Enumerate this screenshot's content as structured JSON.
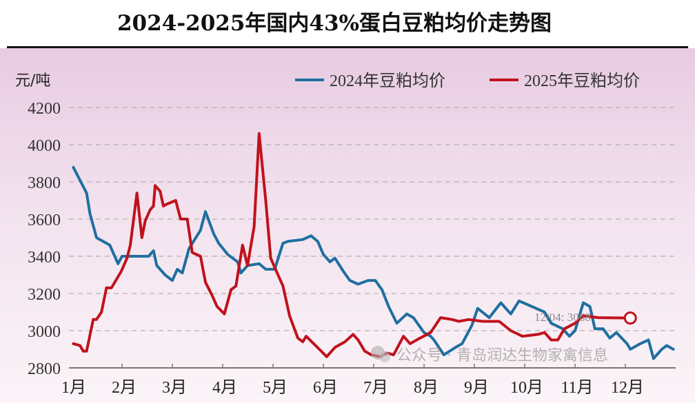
{
  "title": "2024-2025年国内43%蛋白豆粕均价走势图",
  "watermark": "公众号 · 青岛润达生物家禽信息",
  "chart_data": {
    "type": "line",
    "title": "2024-2025年国内43%蛋白豆粕均价走势图",
    "ylabel": "元/吨",
    "xlabel": "",
    "ylim": [
      2800,
      4200
    ],
    "yticks": [
      "2800",
      "3000",
      "3200",
      "3400",
      "3600",
      "3800",
      "4000",
      "4200"
    ],
    "xtick_labels": [
      "1月",
      "2月",
      "3月",
      "4月",
      "5月",
      "6月",
      "7月",
      "8月",
      "9月",
      "10月",
      "11月",
      "12月"
    ],
    "grid": "horizontal dashed",
    "legend_position": "top-right",
    "annotation": {
      "text": "12/04: 3068",
      "series": "2025年豆粕均价",
      "x": "12-04",
      "y": 3068
    },
    "series": [
      {
        "name": "2024年豆粕均价",
        "color": "#1f6f9f",
        "points": [
          [
            "01-02",
            3878
          ],
          [
            "01-10",
            3740
          ],
          [
            "01-12",
            3630
          ],
          [
            "01-16",
            3500
          ],
          [
            "01-18",
            3490
          ],
          [
            "01-24",
            3460
          ],
          [
            "01-29",
            3360
          ],
          [
            "02-01",
            3400
          ],
          [
            "02-06",
            3400
          ],
          [
            "02-17",
            3400
          ],
          [
            "02-20",
            3430
          ],
          [
            "02-22",
            3350
          ],
          [
            "02-27",
            3300
          ],
          [
            "03-01",
            3270
          ],
          [
            "03-04",
            3330
          ],
          [
            "03-07",
            3310
          ],
          [
            "03-11",
            3440
          ],
          [
            "03-18",
            3540
          ],
          [
            "03-21",
            3640
          ],
          [
            "03-26",
            3520
          ],
          [
            "03-29",
            3470
          ],
          [
            "04-04",
            3410
          ],
          [
            "04-10",
            3370
          ],
          [
            "04-12",
            3310
          ],
          [
            "04-16",
            3350
          ],
          [
            "04-23",
            3360
          ],
          [
            "04-27",
            3330
          ],
          [
            "05-02",
            3330
          ],
          [
            "05-07",
            3470
          ],
          [
            "05-10",
            3480
          ],
          [
            "05-19",
            3490
          ],
          [
            "05-24",
            3510
          ],
          [
            "05-28",
            3480
          ],
          [
            "06-01",
            3410
          ],
          [
            "06-05",
            3370
          ],
          [
            "06-08",
            3390
          ],
          [
            "06-13",
            3320
          ],
          [
            "06-17",
            3270
          ],
          [
            "06-22",
            3250
          ],
          [
            "06-28",
            3270
          ],
          [
            "07-02",
            3270
          ],
          [
            "07-06",
            3220
          ],
          [
            "07-10",
            3130
          ],
          [
            "07-15",
            3040
          ],
          [
            "07-21",
            3090
          ],
          [
            "07-25",
            3070
          ],
          [
            "08-01",
            2990
          ],
          [
            "08-05",
            2970
          ],
          [
            "08-07",
            2950
          ],
          [
            "08-13",
            2870
          ],
          [
            "08-20",
            2910
          ],
          [
            "08-24",
            2930
          ],
          [
            "08-30",
            3030
          ],
          [
            "09-03",
            3120
          ],
          [
            "09-10",
            3070
          ],
          [
            "09-17",
            3150
          ],
          [
            "09-23",
            3090
          ],
          [
            "09-28",
            3160
          ],
          [
            "10-13",
            3100
          ],
          [
            "10-17",
            3040
          ],
          [
            "10-24",
            3010
          ],
          [
            "10-28",
            2970
          ],
          [
            "11-01",
            3000
          ],
          [
            "11-06",
            3150
          ],
          [
            "11-10",
            3130
          ],
          [
            "11-13",
            3010
          ],
          [
            "11-18",
            3010
          ],
          [
            "11-22",
            2960
          ],
          [
            "11-26",
            2990
          ],
          [
            "12-02",
            2930
          ],
          [
            "12-04",
            2900
          ],
          [
            "12-10",
            2930
          ],
          [
            "12-15",
            2950
          ],
          [
            "12-18",
            2850
          ],
          [
            "12-23",
            2900
          ],
          [
            "12-26",
            2920
          ],
          [
            "12-30",
            2900
          ]
        ]
      },
      {
        "name": "2025年豆粕均价",
        "color": "#c0121c",
        "points": [
          [
            "01-02",
            2930
          ],
          [
            "01-06",
            2920
          ],
          [
            "01-08",
            2890
          ],
          [
            "01-10",
            2890
          ],
          [
            "01-14",
            3060
          ],
          [
            "01-16",
            3060
          ],
          [
            "01-19",
            3100
          ],
          [
            "01-22",
            3230
          ],
          [
            "01-25",
            3230
          ],
          [
            "01-31",
            3320
          ],
          [
            "02-04",
            3390
          ],
          [
            "02-06",
            3460
          ],
          [
            "02-10",
            3740
          ],
          [
            "02-13",
            3500
          ],
          [
            "02-15",
            3590
          ],
          [
            "02-18",
            3650
          ],
          [
            "02-20",
            3670
          ],
          [
            "02-21",
            3780
          ],
          [
            "02-24",
            3750
          ],
          [
            "02-26",
            3670
          ],
          [
            "02-28",
            3680
          ],
          [
            "03-03",
            3700
          ],
          [
            "03-06",
            3600
          ],
          [
            "03-10",
            3600
          ],
          [
            "03-13",
            3420
          ],
          [
            "03-18",
            3400
          ],
          [
            "03-21",
            3260
          ],
          [
            "03-25",
            3190
          ],
          [
            "03-28",
            3130
          ],
          [
            "04-02",
            3090
          ],
          [
            "04-06",
            3220
          ],
          [
            "04-09",
            3240
          ],
          [
            "04-13",
            3460
          ],
          [
            "04-16",
            3350
          ],
          [
            "04-20",
            3560
          ],
          [
            "04-23",
            4060
          ],
          [
            "04-27",
            3700
          ],
          [
            "04-30",
            3390
          ],
          [
            "05-03",
            3320
          ],
          [
            "05-07",
            3240
          ],
          [
            "05-11",
            3080
          ],
          [
            "05-16",
            2960
          ],
          [
            "05-19",
            2940
          ],
          [
            "05-21",
            2970
          ],
          [
            "05-29",
            2900
          ],
          [
            "06-03",
            2860
          ],
          [
            "06-08",
            2910
          ],
          [
            "06-14",
            2940
          ],
          [
            "06-19",
            2980
          ],
          [
            "06-22",
            2950
          ],
          [
            "06-26",
            2890
          ],
          [
            "06-30",
            2870
          ],
          [
            "07-05",
            2860
          ],
          [
            "07-09",
            2880
          ],
          [
            "07-13",
            2870
          ],
          [
            "07-19",
            2970
          ],
          [
            "07-23",
            2930
          ],
          [
            "07-29",
            2960
          ],
          [
            "08-05",
            2990
          ],
          [
            "08-11",
            3070
          ],
          [
            "08-18",
            3060
          ],
          [
            "08-22",
            3050
          ],
          [
            "08-28",
            3060
          ],
          [
            "09-06",
            3050
          ],
          [
            "09-16",
            3050
          ],
          [
            "09-23",
            3000
          ],
          [
            "09-30",
            2970
          ],
          [
            "10-09",
            2980
          ],
          [
            "10-13",
            2990
          ],
          [
            "10-17",
            2950
          ],
          [
            "10-21",
            2950
          ],
          [
            "10-25",
            3010
          ],
          [
            "11-01",
            3040
          ],
          [
            "11-06",
            3080
          ],
          [
            "11-15",
            3070
          ],
          [
            "12-04",
            3068
          ]
        ]
      }
    ]
  }
}
